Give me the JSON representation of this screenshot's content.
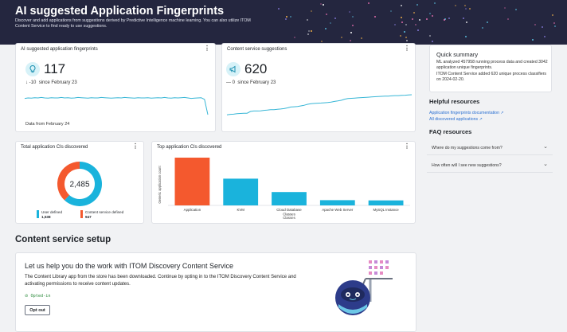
{
  "header": {
    "title": "AI suggested Application Fingerprints",
    "subtitle": "Discover and add applications from suggestions derived by Predictive Intelligence machine learning. You can also utilize ITOM Content Service to find ready to use suggestions."
  },
  "fingerprints_card": {
    "title": "AI suggested application fingerprints",
    "value": "117",
    "delta": "-10",
    "since": "since February 23",
    "footer": "Data from February 24",
    "icon": "lightbulb-icon",
    "line_color": "#37b6d6"
  },
  "content_card": {
    "title": "Content service suggestions",
    "value": "620",
    "delta": "0",
    "since": "since February 23",
    "icon": "megaphone-icon",
    "line_color": "#37b6d6"
  },
  "quick_summary": {
    "title": "Quick summary",
    "line1": "ML analyzed 457958 running process data and created 3042 application unique fingerprints.",
    "line2": "ITOM Content Service added 620 unique process classifiers on 2024-02-20."
  },
  "helpful_resources": {
    "title": "Helpful resources",
    "links": [
      "Application fingerprints documentation",
      "All discovered applications"
    ]
  },
  "faq": {
    "title": "FAQ resources",
    "items": [
      "Where do my suggestions come from?",
      "How often will I see new suggestions?"
    ]
  },
  "total_card": {
    "title": "Total application CIs discovered",
    "total": "2,485",
    "legend": [
      {
        "label": "User defined",
        "value": "1,538",
        "color": "#1ab3dc"
      },
      {
        "label": "Content service defined",
        "value": "947",
        "color": "#f4592e"
      }
    ]
  },
  "top_card": {
    "title": "Top application CIs discovered"
  },
  "content_setup": {
    "section_title": "Content service setup",
    "heading": "Let us help you do the work with ITOM Discovery Content Service",
    "body": "The Content Library app from the store has been downloaded. Continue by opting in to the ITOM Discovery Content Service and activating permissions to receive content updates.",
    "status": "Opted-in",
    "button": "Opt out"
  },
  "chart_data": [
    {
      "type": "bar",
      "title": "Top application CIs discovered",
      "xlabel": "Classes",
      "ylabel": "Generic application count",
      "categories": [
        "Application",
        "KVM",
        "Cloud Database Classes",
        "Apache Web Server",
        "MySQL Instance"
      ],
      "values": [
        1000,
        560,
        280,
        110,
        105
      ],
      "colors": [
        "#f4592e",
        "#1ab3dc",
        "#1ab3dc",
        "#1ab3dc",
        "#1ab3dc"
      ],
      "ylim": [
        0,
        1000
      ]
    },
    {
      "type": "pie",
      "title": "Total application CIs discovered",
      "categories": [
        "User defined",
        "Content service defined"
      ],
      "values": [
        1538,
        947
      ],
      "colors": [
        "#1ab3dc",
        "#f4592e"
      ]
    },
    {
      "type": "line",
      "title": "AI suggested application fingerprints",
      "values": [
        0.78,
        0.8,
        0.79,
        0.81,
        0.8,
        0.82,
        0.8,
        0.79,
        0.81,
        0.8,
        0.8,
        0.82,
        0.8,
        0.81,
        0.79,
        0.8,
        0.82,
        0.81,
        0.8,
        0.79,
        0.81,
        0.8,
        0.8,
        0.82,
        0.81,
        0.8,
        0.79,
        0.8,
        0.81,
        0.8,
        0.82,
        0.81,
        0.8,
        0.79,
        0.81,
        0.8,
        0.8,
        0.81,
        0.79,
        0.8,
        0.81,
        0.8,
        0.82,
        0.8,
        0.79,
        0.81,
        0.8,
        0.81,
        0.82,
        0.8,
        0.78,
        0.79,
        0.8,
        0.81,
        0.74,
        0.1
      ]
    },
    {
      "type": "line",
      "title": "Content service suggestions",
      "values": [
        0.1,
        0.12,
        0.13,
        0.15,
        0.16,
        0.17,
        0.17,
        0.25,
        0.27,
        0.27,
        0.28,
        0.3,
        0.31,
        0.33,
        0.33,
        0.35,
        0.36,
        0.38,
        0.41,
        0.45,
        0.46,
        0.47,
        0.5,
        0.53,
        0.57,
        0.6,
        0.61,
        0.62,
        0.63,
        0.64,
        0.65,
        0.67,
        0.7,
        0.72,
        0.75,
        0.8,
        0.83,
        0.84,
        0.85,
        0.86,
        0.87,
        0.88,
        0.89,
        0.9,
        0.91,
        0.92,
        0.93,
        0.94,
        0.94,
        0.95,
        0.96,
        0.96,
        0.97,
        0.98,
        0.99,
        1.0
      ]
    }
  ]
}
